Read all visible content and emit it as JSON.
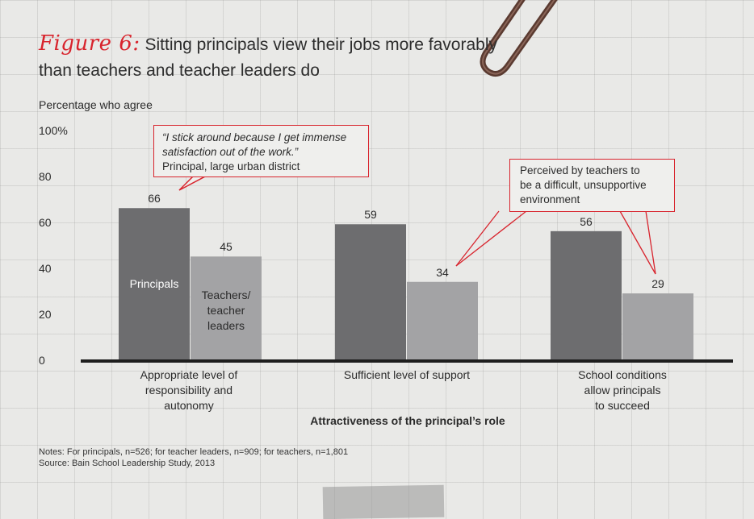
{
  "header": {
    "figure_label": "Figure 6:",
    "title": "Sitting principals view their jobs more favorably than teachers and teacher leaders do"
  },
  "chart_data": {
    "type": "bar",
    "ylabel": "Percentage who agree",
    "xlabel": "Attractiveness of the principal’s role",
    "ylim": [
      0,
      100
    ],
    "yticks": [
      "0",
      "20",
      "40",
      "60",
      "80",
      "100%"
    ],
    "categories": [
      "Appropriate level of responsibility and autonomy",
      "Sufficient level of support",
      "School conditions allow principals to succeed"
    ],
    "series": [
      {
        "name": "Principals",
        "values": [
          66,
          59,
          56
        ],
        "color": "#6d6d6f"
      },
      {
        "name": "Teachers/ teacher leaders",
        "values": [
          45,
          34,
          29
        ],
        "color": "#a3a3a5"
      }
    ],
    "legend": "inside first bars",
    "grid": false
  },
  "category_lines": [
    [
      "Appropriate level of",
      "responsibility and",
      "autonomy"
    ],
    [
      "Sufficient level of support"
    ],
    [
      "School conditions",
      "allow principals",
      "to succeed"
    ]
  ],
  "series_label_lines": [
    [
      "Principals"
    ],
    [
      "Teachers/",
      "teacher",
      "leaders"
    ]
  ],
  "callouts": {
    "quote": {
      "line1": "“I stick around because I get immense",
      "line2": "satisfaction out of the work.”",
      "attribution": "Principal, large urban district"
    },
    "perceived": {
      "line1": "Perceived by teachers to",
      "line2": "be a difficult, unsupportive",
      "line3": "environment"
    }
  },
  "notes": {
    "line1": "Notes: For principals, n=526; for teacher leaders, n=909; for teachers, n=1,801",
    "line2": "Source: Bain School Leadership Study, 2013"
  }
}
